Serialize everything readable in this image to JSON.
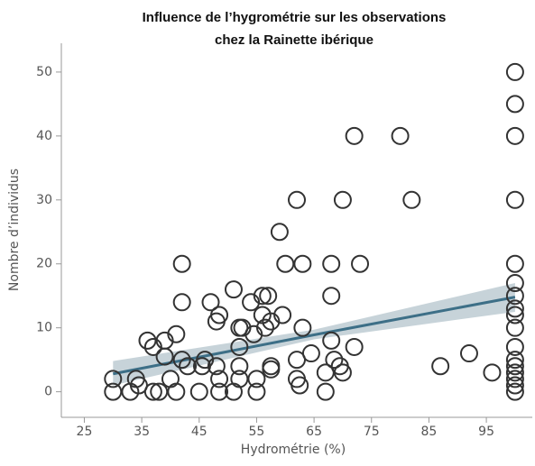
{
  "chart_data": {
    "type": "scatter",
    "title": [
      "Influence de l’hygrométrie sur les observations",
      "chez la Rainette ibérique"
    ],
    "x_label": "Hydrométrie (%)",
    "y_label": "Nombre d’individus",
    "xlim": [
      21,
      103
    ],
    "ylim": [
      -4,
      54.5
    ],
    "xticks": [
      25,
      35,
      45,
      55,
      65,
      75,
      85,
      95
    ],
    "yticks": [
      0,
      10,
      20,
      30,
      40,
      50
    ],
    "point_color": "#333333",
    "x": [
      30,
      30,
      33,
      34,
      34.5,
      36,
      37,
      37,
      38,
      39,
      39,
      40,
      41,
      41,
      42,
      42,
      42,
      43,
      45,
      45.5,
      46,
      47,
      48,
      48,
      48.5,
      48.5,
      48.5,
      51,
      51,
      52,
      52,
      52,
      52,
      52.5,
      54,
      54.5,
      55,
      55,
      56,
      56,
      56.5,
      57,
      57.5,
      57.5,
      57.5,
      59,
      59.5,
      60,
      62,
      62,
      62.5,
      62,
      63,
      63,
      64.5,
      67,
      67,
      68,
      68,
      68,
      68.5,
      69.5,
      70,
      70,
      72,
      72,
      73,
      80,
      82,
      87,
      92,
      96,
      100,
      100,
      100,
      100,
      100,
      100,
      100,
      100,
      100,
      100,
      100,
      100,
      100,
      100,
      100,
      100,
      100
    ],
    "values": [
      2,
      0,
      0,
      2,
      1,
      8,
      7,
      0,
      0,
      8,
      5.5,
      2,
      0,
      9,
      20,
      14,
      5,
      4,
      0,
      4,
      5,
      14,
      11,
      4,
      12,
      2,
      0,
      0,
      16,
      10,
      7,
      4,
      2,
      10,
      14,
      9,
      0,
      2,
      12,
      15,
      10,
      15,
      3.5,
      11,
      4,
      25,
      12,
      20,
      30,
      2,
      1,
      5,
      20,
      10,
      6,
      0,
      3,
      20,
      15,
      8,
      5,
      4,
      30,
      3,
      40,
      7,
      20,
      40,
      30,
      4,
      6,
      3,
      50,
      45,
      40,
      30,
      20,
      17,
      15,
      13,
      12,
      10,
      7,
      5,
      4,
      3,
      2,
      1,
      0
    ],
    "fit": {
      "color": "#3d6f87",
      "band_color": "#b9c8d0",
      "x": [
        30,
        65,
        100
      ],
      "values": [
        2.8,
        8.9,
        14.8
      ],
      "lower": [
        1.0,
        8.2,
        12.5
      ],
      "upper": [
        4.8,
        9.7,
        17.0
      ]
    }
  }
}
